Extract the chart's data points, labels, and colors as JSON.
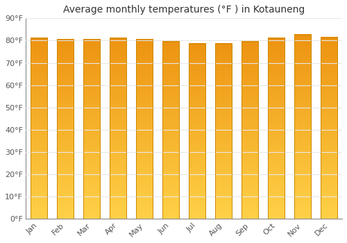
{
  "title": "Average monthly temperatures (°F ) in Kotauneng",
  "months": [
    "Jan",
    "Feb",
    "Mar",
    "Apr",
    "May",
    "Jun",
    "Jul",
    "Aug",
    "Sep",
    "Oct",
    "Nov",
    "Dec"
  ],
  "values": [
    81,
    80.5,
    80.5,
    81,
    80.5,
    79.5,
    78.5,
    78.5,
    79.5,
    81,
    82.5,
    81.5
  ],
  "bar_color_mid": "#FFA520",
  "bar_color_bottom": "#FFD050",
  "bar_color_top": "#F09010",
  "bar_edge_color": "#CC8800",
  "ylim": [
    0,
    90
  ],
  "yticks": [
    0,
    10,
    20,
    30,
    40,
    50,
    60,
    70,
    80,
    90
  ],
  "ytick_labels": [
    "0°F",
    "10°F",
    "20°F",
    "30°F",
    "40°F",
    "50°F",
    "60°F",
    "70°F",
    "80°F",
    "90°F"
  ],
  "background_color": "#FFFFFF",
  "grid_color": "#E8E8E8",
  "title_fontsize": 10,
  "tick_fontsize": 8,
  "bar_width": 0.65
}
